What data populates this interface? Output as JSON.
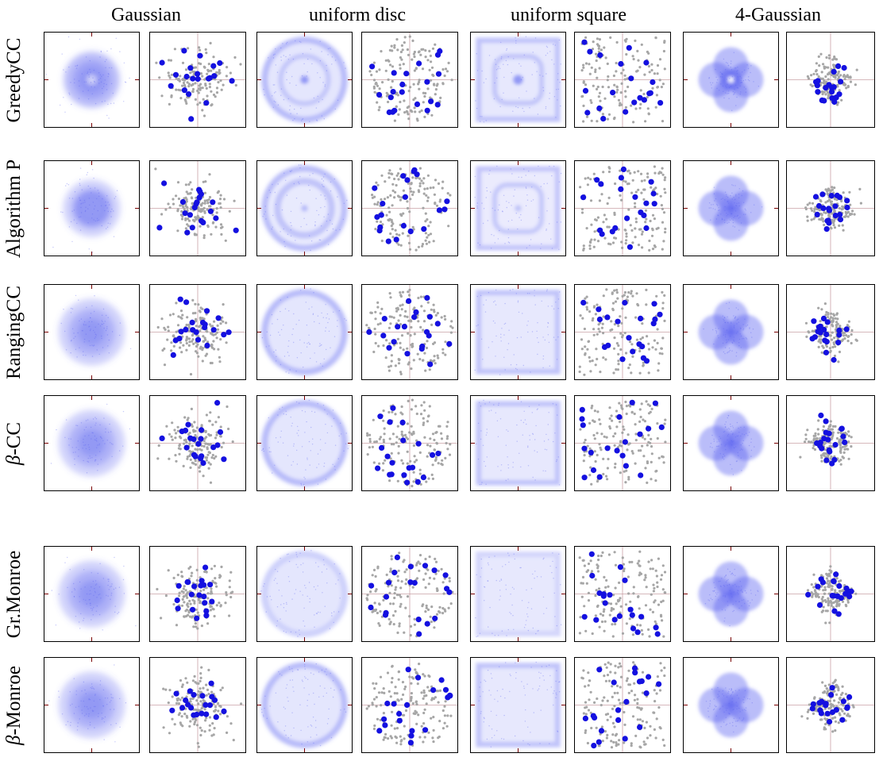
{
  "columns": [
    {
      "id": "gaussian",
      "title": "Gaussian",
      "shape": "gaussian"
    },
    {
      "id": "disc",
      "title": "uniform disc",
      "shape": "disc"
    },
    {
      "id": "square",
      "title": "uniform square",
      "shape": "square"
    },
    {
      "id": "four-gaussian",
      "title": "4-Gaussian",
      "shape": "fourgauss"
    }
  ],
  "rows": [
    {
      "id": "greedycc",
      "greek": "",
      "label": "GreedyCC",
      "style": "rings"
    },
    {
      "id": "algorithm-p",
      "greek": "",
      "label": "Algorithm P",
      "style": "rings-soft"
    },
    {
      "id": "rangingcc",
      "greek": "",
      "label": "RangingCC",
      "style": "edge"
    },
    {
      "id": "beta-cc",
      "greek": "β",
      "label": "-CC",
      "style": "edge"
    },
    {
      "id": "gr-monroe",
      "greek": "",
      "label": "Gr.Monroe",
      "style": "smooth"
    },
    {
      "id": "beta-monroe",
      "greek": "β",
      "label": "-Monroe",
      "style": "edge"
    }
  ],
  "colors": {
    "density": "#5a62f0",
    "winner_point": "#1410e0",
    "voter_point": "#a6a6a6",
    "axis_tick": "#7a0000",
    "crosshair": "#c9a0a6",
    "frame": "#000000"
  }
}
